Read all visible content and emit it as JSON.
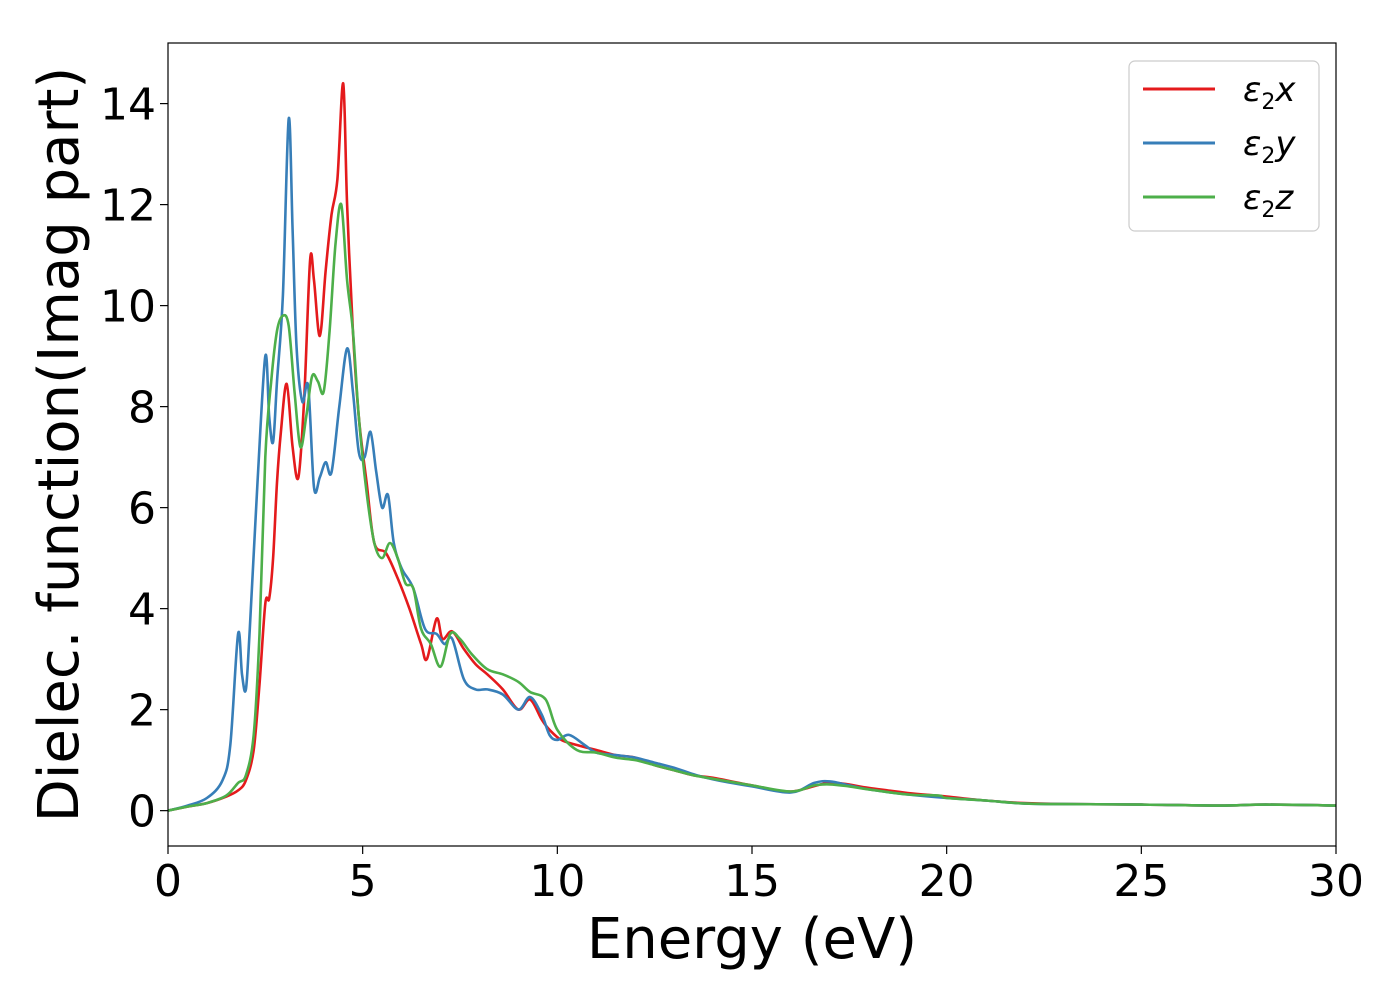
{
  "chart_data": {
    "type": "line",
    "xlabel": "Energy (eV)",
    "ylabel": "Dielec. function(Imag part)",
    "xlim": [
      0,
      30
    ],
    "ylim": [
      -0.7,
      15.2
    ],
    "xticks": [
      0,
      5,
      10,
      15,
      20,
      25,
      30
    ],
    "yticks": [
      0,
      2,
      4,
      6,
      8,
      10,
      12,
      14
    ],
    "grid": false,
    "legend_position": "top-right",
    "series": [
      {
        "name": "ε2x",
        "legend": {
          "base": "ε",
          "sub": "2",
          "var": "x"
        },
        "color": "#e41a1c",
        "x": [
          0,
          0.5,
          1.0,
          1.5,
          1.8,
          2.0,
          2.2,
          2.35,
          2.5,
          2.6,
          2.7,
          2.8,
          2.9,
          3.05,
          3.2,
          3.35,
          3.5,
          3.65,
          3.75,
          3.9,
          4.05,
          4.2,
          4.35,
          4.5,
          4.6,
          4.75,
          4.9,
          5.1,
          5.3,
          5.6,
          5.9,
          6.2,
          6.5,
          6.65,
          6.9,
          7.05,
          7.3,
          7.6,
          7.9,
          8.2,
          8.6,
          9.0,
          9.3,
          9.6,
          9.8,
          10.1,
          10.5,
          11.0,
          11.5,
          12.0,
          12.5,
          13.0,
          13.5,
          14.0,
          15.0,
          16.0,
          17.0,
          18.0,
          19.0,
          20.0,
          21.0,
          22.0,
          23.0,
          25.0,
          27.0,
          28.2,
          30.0
        ],
        "values": [
          0.0,
          0.08,
          0.15,
          0.28,
          0.4,
          0.6,
          1.2,
          2.5,
          4.1,
          4.2,
          5.0,
          6.5,
          7.5,
          8.45,
          7.2,
          6.6,
          8.2,
          10.9,
          10.5,
          9.4,
          10.7,
          11.8,
          12.5,
          14.4,
          12.0,
          9.5,
          7.8,
          6.5,
          5.3,
          5.1,
          4.6,
          4.0,
          3.3,
          3.0,
          3.8,
          3.4,
          3.55,
          3.2,
          2.9,
          2.7,
          2.4,
          2.0,
          2.2,
          1.8,
          1.6,
          1.4,
          1.3,
          1.2,
          1.1,
          1.05,
          0.9,
          0.8,
          0.7,
          0.65,
          0.5,
          0.38,
          0.55,
          0.45,
          0.35,
          0.28,
          0.2,
          0.15,
          0.13,
          0.12,
          0.1,
          0.12,
          0.1
        ]
      },
      {
        "name": "ε2y",
        "legend": {
          "base": "ε",
          "sub": "2",
          "var": "y"
        },
        "color": "#377eb8",
        "x": [
          0,
          0.5,
          1.0,
          1.4,
          1.6,
          1.8,
          1.9,
          2.0,
          2.1,
          2.3,
          2.5,
          2.6,
          2.7,
          2.8,
          2.95,
          3.1,
          3.2,
          3.3,
          3.45,
          3.6,
          3.75,
          3.9,
          4.05,
          4.2,
          4.4,
          4.6,
          4.75,
          4.9,
          5.05,
          5.2,
          5.35,
          5.5,
          5.65,
          5.8,
          6.0,
          6.3,
          6.6,
          6.9,
          7.1,
          7.3,
          7.6,
          7.9,
          8.2,
          8.6,
          9.0,
          9.3,
          9.6,
          9.8,
          10.0,
          10.3,
          10.7,
          11.0,
          11.5,
          12.0,
          12.5,
          13.0,
          13.5,
          14.0,
          15.0,
          16.0,
          16.6,
          17.0,
          17.5,
          18.0,
          19.0,
          20.0,
          21.0,
          22.0,
          23.0,
          25.0,
          27.0,
          28.2,
          30.0
        ],
        "values": [
          0.0,
          0.1,
          0.25,
          0.6,
          1.3,
          3.5,
          2.7,
          2.4,
          3.6,
          6.5,
          9.0,
          7.8,
          7.3,
          8.5,
          10.2,
          13.7,
          11.5,
          9.2,
          8.1,
          8.4,
          6.4,
          6.6,
          6.9,
          6.7,
          8.0,
          9.15,
          8.3,
          7.1,
          7.0,
          7.5,
          6.7,
          6.0,
          6.25,
          5.3,
          4.8,
          4.4,
          3.6,
          3.5,
          3.3,
          3.4,
          2.6,
          2.4,
          2.4,
          2.3,
          2.0,
          2.25,
          1.9,
          1.5,
          1.4,
          1.5,
          1.3,
          1.15,
          1.1,
          1.05,
          0.95,
          0.85,
          0.72,
          0.62,
          0.48,
          0.36,
          0.55,
          0.58,
          0.5,
          0.42,
          0.32,
          0.25,
          0.2,
          0.14,
          0.13,
          0.12,
          0.1,
          0.12,
          0.1
        ]
      },
      {
        "name": "ε2z",
        "legend": {
          "base": "ε",
          "sub": "2",
          "var": "z"
        },
        "color": "#4daf4a",
        "x": [
          0,
          0.5,
          1.0,
          1.5,
          1.8,
          2.0,
          2.2,
          2.35,
          2.5,
          2.65,
          2.8,
          2.95,
          3.1,
          3.25,
          3.4,
          3.55,
          3.7,
          3.85,
          4.0,
          4.15,
          4.3,
          4.45,
          4.6,
          4.75,
          4.9,
          5.1,
          5.3,
          5.5,
          5.7,
          5.9,
          6.1,
          6.3,
          6.5,
          6.75,
          7.0,
          7.25,
          7.5,
          7.8,
          8.2,
          8.6,
          9.0,
          9.3,
          9.7,
          10.0,
          10.5,
          11.0,
          11.5,
          12.0,
          12.5,
          13.0,
          13.5,
          14.0,
          15.0,
          16.0,
          16.6,
          17.0,
          17.5,
          18.0,
          19.0,
          19.8,
          20.0,
          21.0,
          22.0,
          23.0,
          25.0,
          27.0,
          28.2,
          30.0
        ],
        "values": [
          0.0,
          0.08,
          0.15,
          0.3,
          0.55,
          0.7,
          1.5,
          3.5,
          7.0,
          8.5,
          9.5,
          9.8,
          9.6,
          8.3,
          7.2,
          7.8,
          8.6,
          8.5,
          8.3,
          9.5,
          11.2,
          12.0,
          10.5,
          9.5,
          7.8,
          6.3,
          5.3,
          5.0,
          5.3,
          5.0,
          4.5,
          4.4,
          3.6,
          3.3,
          2.85,
          3.5,
          3.4,
          3.1,
          2.8,
          2.7,
          2.55,
          2.35,
          2.2,
          1.6,
          1.2,
          1.15,
          1.05,
          1.0,
          0.9,
          0.8,
          0.7,
          0.63,
          0.5,
          0.38,
          0.5,
          0.52,
          0.48,
          0.42,
          0.32,
          0.3,
          0.25,
          0.2,
          0.14,
          0.13,
          0.12,
          0.1,
          0.12,
          0.1
        ]
      }
    ]
  }
}
